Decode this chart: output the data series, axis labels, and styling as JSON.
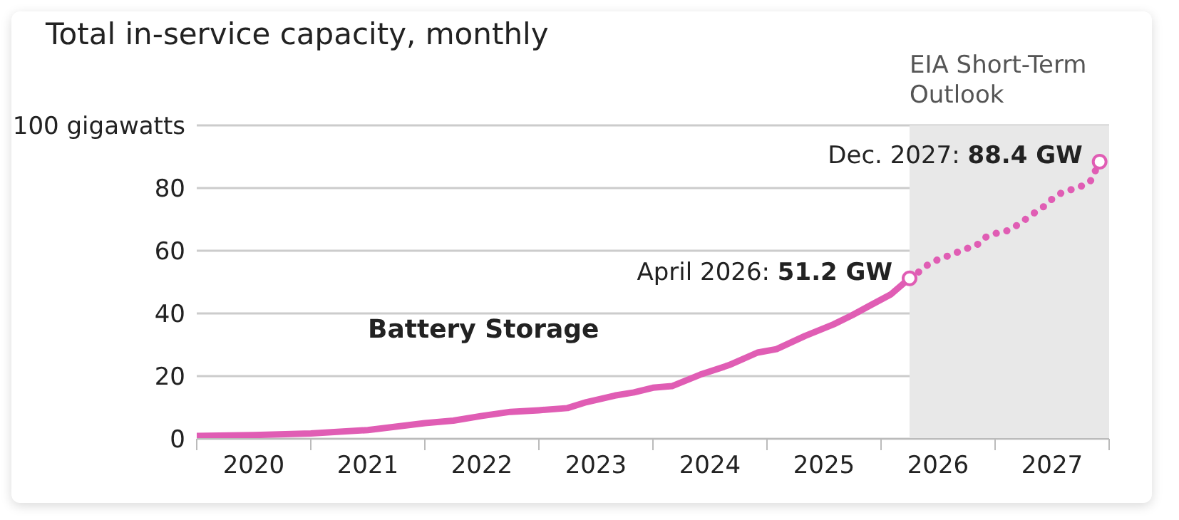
{
  "chart_data": {
    "type": "line",
    "title": "Total in-service capacity, monthly",
    "series": [
      {
        "color": "#e05db4",
        "line_style": "solid",
        "x": [
          "2020-01",
          "2020-07",
          "2021-01",
          "2021-07",
          "2022-01",
          "2022-04",
          "2022-07",
          "2022-10",
          "2023-01",
          "2023-04",
          "2023-06",
          "2023-09",
          "2023-11",
          "2024-01",
          "2024-03",
          "2024-06",
          "2024-09",
          "2024-12",
          "2025-02",
          "2025-05",
          "2025-08",
          "2025-10",
          "2025-12",
          "2026-02",
          "2026-04"
        ],
        "values": [
          0.9,
          1.2,
          1.7,
          2.8,
          5.0,
          5.8,
          7.3,
          8.6,
          9.1,
          9.8,
          11.7,
          13.8,
          14.8,
          16.3,
          16.8,
          20.5,
          23.5,
          27.5,
          28.6,
          32.8,
          36.5,
          39.5,
          42.8,
          46.0,
          51.2
        ]
      },
      {
        "color": "#e05db4",
        "line_style": "dotted",
        "x": [
          "2026-04",
          "2026-05",
          "2026-06",
          "2026-07",
          "2026-08",
          "2026-09",
          "2026-10",
          "2026-11",
          "2026-12",
          "2027-01",
          "2027-02",
          "2027-03",
          "2027-04",
          "2027-05",
          "2027-06",
          "2027-07",
          "2027-08",
          "2027-09",
          "2027-10",
          "2027-11",
          "2027-12"
        ],
        "values": [
          51.2,
          53.3,
          55.7,
          57.2,
          58.3,
          59.5,
          60.7,
          61.6,
          64.3,
          65.5,
          66.0,
          67.5,
          69.6,
          71.8,
          73.8,
          76.5,
          78.5,
          79.5,
          80.5,
          82.0,
          88.4
        ]
      }
    ],
    "xlim": [
      "2020-01",
      "2028-01"
    ],
    "xticks": [
      {
        "value": "2020-01",
        "label": null
      },
      {
        "value": "2020-07",
        "label": "2020"
      },
      {
        "value": "2021-01",
        "label": null
      },
      {
        "value": "2021-07",
        "label": "2021"
      },
      {
        "value": "2022-01",
        "label": null
      },
      {
        "value": "2022-07",
        "label": "2022"
      },
      {
        "value": "2023-01",
        "label": null
      },
      {
        "value": "2023-07",
        "label": "2023"
      },
      {
        "value": "2024-01",
        "label": null
      },
      {
        "value": "2024-07",
        "label": "2024"
      },
      {
        "value": "2025-01",
        "label": null
      },
      {
        "value": "2025-07",
        "label": "2025"
      },
      {
        "value": "2026-01",
        "label": null
      },
      {
        "value": "2026-07",
        "label": "2026"
      },
      {
        "value": "2027-01",
        "label": null
      },
      {
        "value": "2027-07",
        "label": "2027"
      },
      {
        "value": "2028-01",
        "label": null
      }
    ],
    "ylim": [
      0,
      100
    ],
    "yticks": [
      0,
      20,
      40,
      60,
      80,
      {
        "value": 100,
        "label": "100 gigawatts"
      }
    ],
    "grid": "y",
    "bands": [
      {
        "axis": "x",
        "from": "2026-04",
        "to": "2028-01",
        "label": "EIA Short-Term Outlook",
        "color": "#e8e8e8"
      }
    ],
    "annotations": [
      "Battery Storage",
      {
        "text": "April 2026: 51.2 GW",
        "x": "2026-04",
        "y": 51.2
      },
      {
        "text": "Dec. 2027: 88.4 GW",
        "x": "2027-12",
        "y": 88.4
      }
    ]
  }
}
